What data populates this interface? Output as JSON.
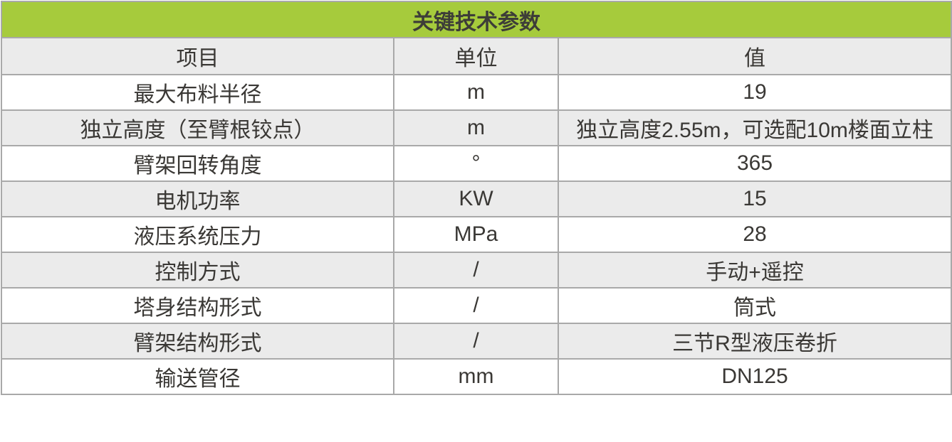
{
  "table": {
    "title": "关键技术参数",
    "columns": {
      "item": "项目",
      "unit": "单位",
      "value": "值"
    },
    "rows": [
      {
        "item": "最大布料半径",
        "unit": "m",
        "value": "19"
      },
      {
        "item": "独立高度（至臂根铰点）",
        "unit": "m",
        "value": "独立高度2.55m，可选配10m楼面立柱"
      },
      {
        "item": "臂架回转角度",
        "unit": "°",
        "value": "365"
      },
      {
        "item": "电机功率",
        "unit": "KW",
        "value": "15"
      },
      {
        "item": "液压系统压力",
        "unit": "MPa",
        "value": "28"
      },
      {
        "item": "控制方式",
        "unit": "/",
        "value": "手动+遥控"
      },
      {
        "item": "塔身结构形式",
        "unit": "/",
        "value": "筒式"
      },
      {
        "item": "臂架结构形式",
        "unit": "/",
        "value": "三节R型液压卷折"
      },
      {
        "item": "输送管径",
        "unit": "mm",
        "value": "DN125"
      }
    ],
    "colors": {
      "title_green": "#a6cb3c",
      "stripe_gray": "#ebebeb",
      "stripe_white": "#ffffff",
      "border_gray": "#a9a9a9",
      "text": "#3a3835"
    }
  }
}
